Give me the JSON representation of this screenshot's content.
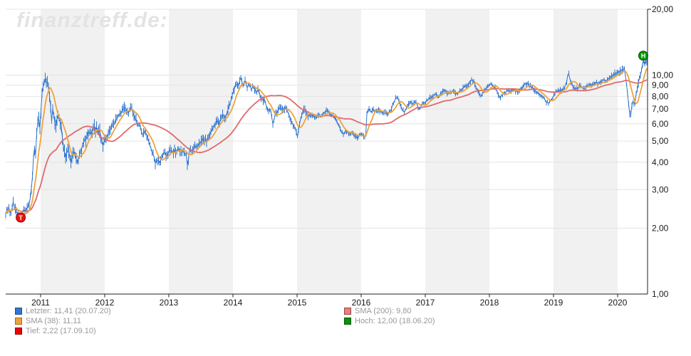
{
  "watermark": "finanztreff.de:",
  "colors": {
    "background": "#ffffff",
    "band": "#f1f1f1",
    "grid": "#e4e4e4",
    "axis": "#222222",
    "tick_text": "#1a1a1a",
    "legend_text": "#999999",
    "price": "#3377cf",
    "sma38": "#f0a23c",
    "sma200": "#e06a6a",
    "tief": "#ee1111",
    "tief_border": "#990000",
    "hoch": "#089408",
    "hoch_border": "#045404",
    "watermark_color": "#e3e3e3"
  },
  "legend": {
    "left": [
      {
        "id": "letzter",
        "text": "Letzter: 11,41 (20.07.20)",
        "swatch": "#3376cc",
        "swatch_border": "#1c4f9c"
      },
      {
        "id": "sma38",
        "text": "SMA (38): 11,11",
        "swatch": "#efa23c",
        "swatch_border": "#a86a10"
      },
      {
        "id": "tief",
        "text": "Tief: 2,22 (17.09.10)",
        "swatch": "#ee0000",
        "swatch_border": "#990000"
      }
    ],
    "right": [
      {
        "id": "sma200",
        "text": "SMA (200): 9,80",
        "swatch": "#e88080",
        "swatch_border": "#994444"
      },
      {
        "id": "hoch",
        "text": "Hoch: 12,00 (18.06.20)",
        "swatch": "#089408",
        "swatch_border": "#045404"
      }
    ]
  },
  "chart_data": {
    "type": "line",
    "title": "",
    "xlabel": "",
    "ylabel": "",
    "x_axis": {
      "ticks": [
        2011,
        2012,
        2013,
        2014,
        2015,
        2016,
        2017,
        2018,
        2019,
        2020
      ],
      "range": [
        2010.45,
        2020.47
      ],
      "shaded_years": [
        2011,
        2013,
        2015,
        2017,
        2019
      ]
    },
    "y_axis": {
      "scale": "log",
      "range": [
        1,
        20
      ],
      "ticks": [
        {
          "value": 20,
          "label": "20,00"
        },
        {
          "value": 10,
          "label": "10,00"
        },
        {
          "value": 9,
          "label": "9,00"
        },
        {
          "value": 8,
          "label": "8,00"
        },
        {
          "value": 7,
          "label": "7,00"
        },
        {
          "value": 6,
          "label": "6,00"
        },
        {
          "value": 5,
          "label": "5,00"
        },
        {
          "value": 4,
          "label": "4,00"
        },
        {
          "value": 3,
          "label": "3,00"
        },
        {
          "value": 2,
          "label": "2,00"
        },
        {
          "value": 1,
          "label": "1,00"
        }
      ]
    },
    "series": [
      {
        "name": "Letzter",
        "color_key": "price",
        "last_value": "11,41",
        "last_date": "20.07.20",
        "points": [
          [
            2010.46,
            2.35
          ],
          [
            2010.5,
            2.52
          ],
          [
            2010.53,
            2.3
          ],
          [
            2010.57,
            2.62
          ],
          [
            2010.61,
            2.38
          ],
          [
            2010.66,
            2.3
          ],
          [
            2010.69,
            2.22
          ],
          [
            2010.73,
            2.4
          ],
          [
            2010.79,
            2.46
          ],
          [
            2010.83,
            2.6
          ],
          [
            2010.87,
            3.3
          ],
          [
            2010.9,
            4.8
          ],
          [
            2010.92,
            4.3
          ],
          [
            2010.96,
            6.4
          ],
          [
            2010.99,
            5.8
          ],
          [
            2011.01,
            7.4
          ],
          [
            2011.03,
            8.5
          ],
          [
            2011.06,
            9.2
          ],
          [
            2011.08,
            9.9
          ],
          [
            2011.1,
            8.8
          ],
          [
            2011.12,
            9.4
          ],
          [
            2011.14,
            7.9
          ],
          [
            2011.17,
            6.2
          ],
          [
            2011.19,
            7.0
          ],
          [
            2011.21,
            6.3
          ],
          [
            2011.23,
            5.6
          ],
          [
            2011.26,
            6.3
          ],
          [
            2011.28,
            6.6
          ],
          [
            2011.3,
            5.9
          ],
          [
            2011.32,
            6.2
          ],
          [
            2011.34,
            5.0
          ],
          [
            2011.37,
            4.6
          ],
          [
            2011.39,
            4.2
          ],
          [
            2011.41,
            4.5
          ],
          [
            2011.43,
            4.7
          ],
          [
            2011.46,
            4.1
          ],
          [
            2011.48,
            3.95
          ],
          [
            2011.5,
            4.3
          ],
          [
            2011.53,
            4.45
          ],
          [
            2011.57,
            3.95
          ],
          [
            2011.59,
            4.2
          ],
          [
            2011.62,
            4.35
          ],
          [
            2011.66,
            4.8
          ],
          [
            2011.7,
            5.1
          ],
          [
            2011.74,
            5.6
          ],
          [
            2011.79,
            5.4
          ],
          [
            2011.83,
            5.8
          ],
          [
            2011.88,
            5.6
          ],
          [
            2011.92,
            5.5
          ],
          [
            2011.97,
            4.8
          ],
          [
            2012.01,
            5.1
          ],
          [
            2012.06,
            5.5
          ],
          [
            2012.1,
            5.8
          ],
          [
            2012.14,
            6.0
          ],
          [
            2012.19,
            6.3
          ],
          [
            2012.23,
            6.6
          ],
          [
            2012.28,
            6.9
          ],
          [
            2012.32,
            7.1
          ],
          [
            2012.37,
            6.7
          ],
          [
            2012.41,
            7.2
          ],
          [
            2012.46,
            6.5
          ],
          [
            2012.5,
            6.1
          ],
          [
            2012.54,
            5.9
          ],
          [
            2012.59,
            5.4
          ],
          [
            2012.63,
            5.6
          ],
          [
            2012.68,
            5.0
          ],
          [
            2012.72,
            4.6
          ],
          [
            2012.76,
            4.3
          ],
          [
            2012.79,
            3.9
          ],
          [
            2012.82,
            4.1
          ],
          [
            2012.86,
            4.0
          ],
          [
            2012.89,
            4.2
          ],
          [
            2012.92,
            4.45
          ],
          [
            2012.97,
            4.3
          ],
          [
            2013.01,
            4.5
          ],
          [
            2013.06,
            4.45
          ],
          [
            2013.1,
            4.5
          ],
          [
            2013.14,
            4.6
          ],
          [
            2013.19,
            4.45
          ],
          [
            2013.23,
            4.5
          ],
          [
            2013.27,
            4.4
          ],
          [
            2013.29,
            3.82
          ],
          [
            2013.32,
            4.5
          ],
          [
            2013.37,
            4.6
          ],
          [
            2013.42,
            4.75
          ],
          [
            2013.48,
            4.9
          ],
          [
            2013.53,
            5.1
          ],
          [
            2013.59,
            5.0
          ],
          [
            2013.64,
            5.3
          ],
          [
            2013.7,
            5.8
          ],
          [
            2013.76,
            6.2
          ],
          [
            2013.79,
            6.0
          ],
          [
            2013.83,
            6.6
          ],
          [
            2013.88,
            6.4
          ],
          [
            2013.92,
            7.0
          ],
          [
            2013.97,
            7.6
          ],
          [
            2014.0,
            8.3
          ],
          [
            2014.03,
            8.8
          ],
          [
            2014.07,
            9.2
          ],
          [
            2014.09,
            8.9
          ],
          [
            2014.12,
            9.85
          ],
          [
            2014.16,
            9.0
          ],
          [
            2014.19,
            9.4
          ],
          [
            2014.22,
            8.8
          ],
          [
            2014.26,
            9.1
          ],
          [
            2014.29,
            8.6
          ],
          [
            2014.32,
            8.9
          ],
          [
            2014.36,
            8.4
          ],
          [
            2014.39,
            8.6
          ],
          [
            2014.42,
            8.1
          ],
          [
            2014.46,
            7.6
          ],
          [
            2014.49,
            7.8
          ],
          [
            2014.52,
            7.2
          ],
          [
            2014.56,
            6.8
          ],
          [
            2014.59,
            7.0
          ],
          [
            2014.62,
            5.95
          ],
          [
            2014.66,
            6.6
          ],
          [
            2014.7,
            6.9
          ],
          [
            2014.74,
            7.1
          ],
          [
            2014.79,
            7.0
          ],
          [
            2014.83,
            7.1
          ],
          [
            2014.88,
            6.6
          ],
          [
            2014.92,
            6.1
          ],
          [
            2014.97,
            5.7
          ],
          [
            2015.01,
            5.25
          ],
          [
            2015.04,
            6.0
          ],
          [
            2015.08,
            6.6
          ],
          [
            2015.11,
            7.0
          ],
          [
            2015.14,
            6.7
          ],
          [
            2015.19,
            6.5
          ],
          [
            2015.23,
            6.6
          ],
          [
            2015.28,
            6.4
          ],
          [
            2015.32,
            6.6
          ],
          [
            2015.37,
            6.5
          ],
          [
            2015.41,
            6.7
          ],
          [
            2015.46,
            7.0
          ],
          [
            2015.5,
            6.7
          ],
          [
            2015.54,
            6.5
          ],
          [
            2015.59,
            6.4
          ],
          [
            2015.63,
            6.0
          ],
          [
            2015.68,
            5.6
          ],
          [
            2015.72,
            5.4
          ],
          [
            2015.77,
            5.6
          ],
          [
            2015.81,
            5.3
          ],
          [
            2015.86,
            5.5
          ],
          [
            2015.9,
            5.3
          ],
          [
            2015.94,
            5.15
          ],
          [
            2015.99,
            5.4
          ],
          [
            2016.03,
            5.3
          ],
          [
            2016.07,
            5.2
          ],
          [
            2016.09,
            6.8
          ],
          [
            2016.12,
            7.0
          ],
          [
            2016.16,
            6.8
          ],
          [
            2016.19,
            7.0
          ],
          [
            2016.23,
            6.8
          ],
          [
            2016.28,
            6.9
          ],
          [
            2016.32,
            6.7
          ],
          [
            2016.37,
            6.8
          ],
          [
            2016.41,
            6.6
          ],
          [
            2016.46,
            6.9
          ],
          [
            2016.5,
            7.4
          ],
          [
            2016.54,
            7.8
          ],
          [
            2016.57,
            7.9
          ],
          [
            2016.6,
            7.5
          ],
          [
            2016.63,
            7.1
          ],
          [
            2016.67,
            6.7
          ],
          [
            2016.7,
            7.0
          ],
          [
            2016.73,
            7.3
          ],
          [
            2016.77,
            7.5
          ],
          [
            2016.81,
            7.4
          ],
          [
            2016.86,
            7.5
          ],
          [
            2016.9,
            6.95
          ],
          [
            2016.94,
            7.3
          ],
          [
            2016.99,
            7.5
          ],
          [
            2017.03,
            7.7
          ],
          [
            2017.08,
            7.9
          ],
          [
            2017.12,
            8.0
          ],
          [
            2017.17,
            8.2
          ],
          [
            2017.21,
            8.0
          ],
          [
            2017.26,
            8.4
          ],
          [
            2017.3,
            8.6
          ],
          [
            2017.34,
            8.2
          ],
          [
            2017.39,
            8.4
          ],
          [
            2017.43,
            8.5
          ],
          [
            2017.48,
            8.2
          ],
          [
            2017.52,
            8.4
          ],
          [
            2017.57,
            8.6
          ],
          [
            2017.61,
            8.8
          ],
          [
            2017.66,
            9.0
          ],
          [
            2017.7,
            9.3
          ],
          [
            2017.73,
            9.6
          ],
          [
            2017.77,
            9.2
          ],
          [
            2017.8,
            8.7
          ],
          [
            2017.83,
            8.3
          ],
          [
            2017.87,
            8.0
          ],
          [
            2017.9,
            8.4
          ],
          [
            2017.93,
            8.6
          ],
          [
            2017.97,
            8.8
          ],
          [
            2018.0,
            9.0
          ],
          [
            2018.03,
            9.1
          ],
          [
            2018.07,
            8.9
          ],
          [
            2018.1,
            8.7
          ],
          [
            2018.13,
            8.2
          ],
          [
            2018.17,
            7.9
          ],
          [
            2018.2,
            8.1
          ],
          [
            2018.23,
            8.3
          ],
          [
            2018.28,
            8.5
          ],
          [
            2018.32,
            8.4
          ],
          [
            2018.37,
            8.6
          ],
          [
            2018.41,
            8.4
          ],
          [
            2018.46,
            8.5
          ],
          [
            2018.5,
            8.7
          ],
          [
            2018.54,
            9.0
          ],
          [
            2018.59,
            9.2
          ],
          [
            2018.63,
            8.9
          ],
          [
            2018.68,
            8.7
          ],
          [
            2018.72,
            8.5
          ],
          [
            2018.77,
            8.3
          ],
          [
            2018.81,
            8.0
          ],
          [
            2018.86,
            7.8
          ],
          [
            2018.9,
            7.45
          ],
          [
            2018.94,
            7.55
          ],
          [
            2018.99,
            7.9
          ],
          [
            2019.03,
            8.4
          ],
          [
            2019.08,
            8.6
          ],
          [
            2019.12,
            8.5
          ],
          [
            2019.17,
            8.7
          ],
          [
            2019.2,
            9.2
          ],
          [
            2019.23,
            10.3
          ],
          [
            2019.27,
            9.3
          ],
          [
            2019.3,
            8.9
          ],
          [
            2019.34,
            8.6
          ],
          [
            2019.39,
            8.8
          ],
          [
            2019.43,
            8.9
          ],
          [
            2019.48,
            8.7
          ],
          [
            2019.52,
            8.9
          ],
          [
            2019.57,
            9.1
          ],
          [
            2019.61,
            9.0
          ],
          [
            2019.66,
            9.2
          ],
          [
            2019.7,
            9.1
          ],
          [
            2019.74,
            9.3
          ],
          [
            2019.79,
            9.6
          ],
          [
            2019.83,
            9.4
          ],
          [
            2019.88,
            9.7
          ],
          [
            2019.92,
            9.9
          ],
          [
            2019.97,
            10.1
          ],
          [
            2020.0,
            10.3
          ],
          [
            2020.03,
            10.5
          ],
          [
            2020.07,
            10.4
          ],
          [
            2020.1,
            10.8
          ],
          [
            2020.13,
            9.5
          ],
          [
            2020.16,
            8.0
          ],
          [
            2020.18,
            6.9
          ],
          [
            2020.2,
            6.45
          ],
          [
            2020.22,
            7.2
          ],
          [
            2020.24,
            7.6
          ],
          [
            2020.27,
            7.4
          ],
          [
            2020.29,
            8.2
          ],
          [
            2020.31,
            8.8
          ],
          [
            2020.33,
            9.4
          ],
          [
            2020.36,
            10.2
          ],
          [
            2020.38,
            10.8
          ],
          [
            2020.4,
            12.0
          ],
          [
            2020.42,
            11.2
          ],
          [
            2020.44,
            11.6
          ],
          [
            2020.46,
            11.41
          ]
        ]
      },
      {
        "name": "SMA (38)",
        "color_key": "sma38",
        "window_days": 38,
        "last_value": "11,11",
        "derived_from": "Letzter"
      },
      {
        "name": "SMA (200)",
        "color_key": "sma200",
        "window_days": 200,
        "last_value": "9,80",
        "derived_from": "Letzter"
      }
    ],
    "markers": [
      {
        "id": "tief",
        "label": "T",
        "value": 2.22,
        "date": "17.09.10",
        "x_year": 2010.69
      },
      {
        "id": "hoch",
        "label": "H",
        "value": 12.0,
        "date": "18.06.20",
        "x_year": 2020.4
      }
    ],
    "legend_position": "bottom",
    "grid": true
  }
}
